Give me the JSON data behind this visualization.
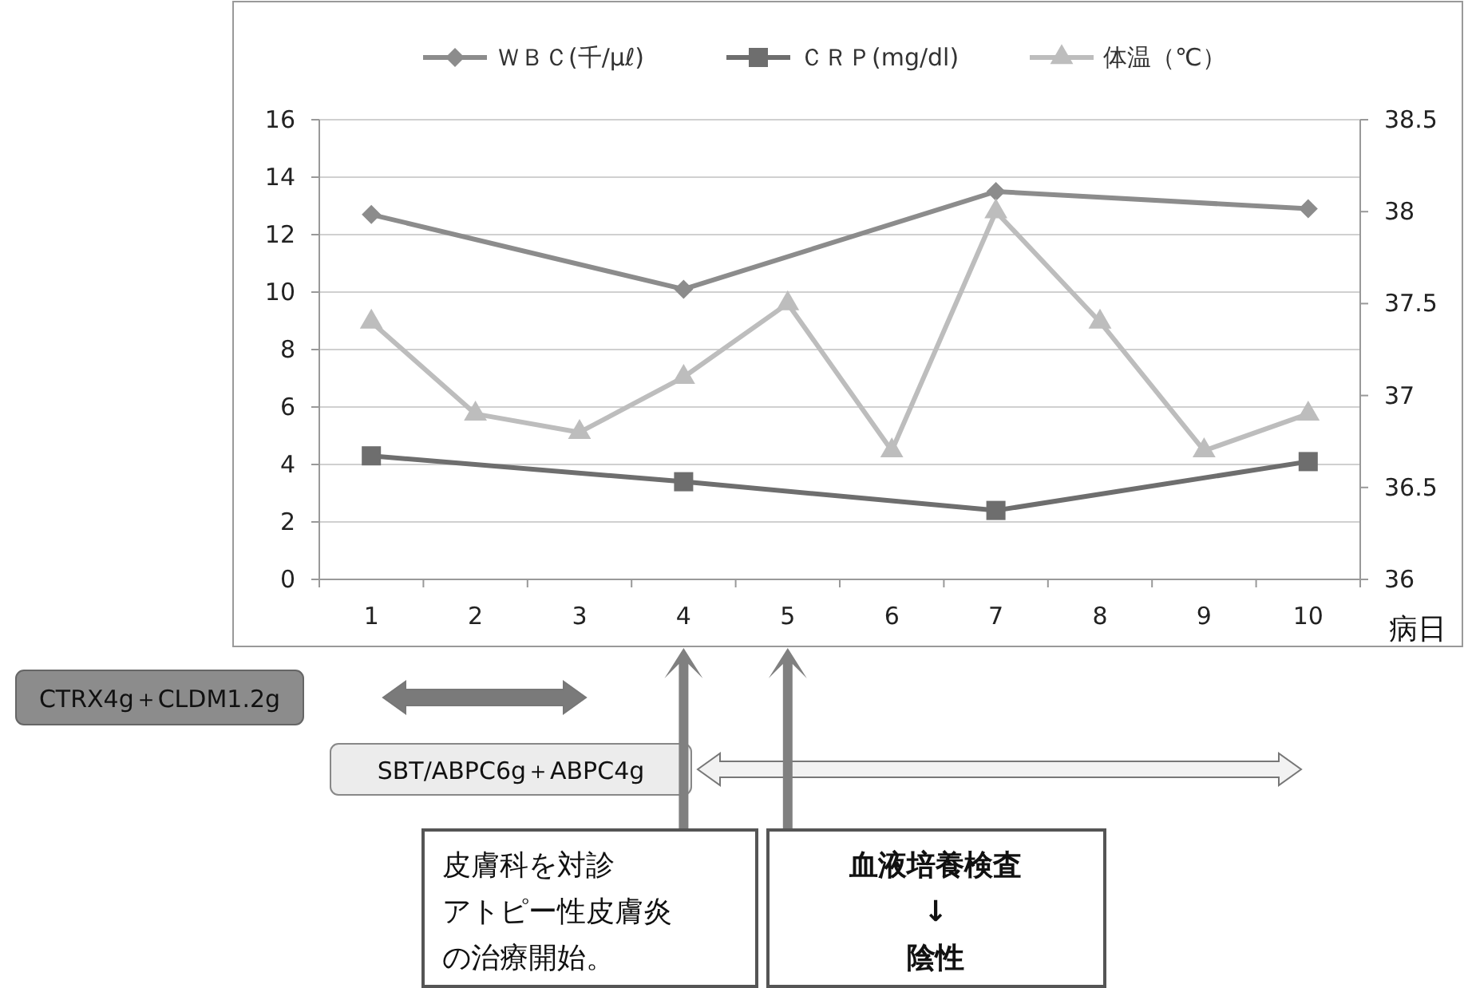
{
  "chart_data": {
    "type": "line",
    "xlabel": "病日",
    "categories": [
      "1",
      "2",
      "3",
      "4",
      "5",
      "6",
      "7",
      "8",
      "9",
      "10"
    ],
    "series": [
      {
        "name": "ＷＢＣ(千/μℓ)",
        "color": "#8c8c8c",
        "marker": "diamond",
        "values": [
          12.7,
          null,
          null,
          10.1,
          null,
          null,
          13.5,
          null,
          null,
          12.9
        ]
      },
      {
        "name": "ＣＲＰ(mg/dl)",
        "color": "#6e6e6e",
        "marker": "square",
        "values": [
          4.3,
          null,
          null,
          3.4,
          null,
          null,
          2.4,
          null,
          null,
          4.1
        ]
      },
      {
        "name": "体温（℃）",
        "color": "#bdbdbd",
        "marker": "triangle",
        "axis": "y2",
        "values": [
          37.4,
          36.9,
          36.8,
          37.1,
          37.5,
          36.7,
          38.0,
          37.4,
          36.7,
          36.9
        ]
      }
    ],
    "ylim": [
      0,
      16
    ],
    "yticks": [
      0,
      2,
      4,
      6,
      8,
      10,
      12,
      14,
      16
    ],
    "y2lim": [
      36,
      38.5
    ],
    "y2ticks": [
      36,
      36.5,
      37,
      37.5,
      38,
      38.5
    ],
    "grid": "y",
    "legend": "top",
    "annotations": [
      "CTRX4g＋CLDM1.2g",
      "SBT/ABPC6g＋ABPC4g",
      "皮膚科を対診",
      "アトピー性皮膚炎の治療開始。",
      "血液培養検査\n↓\n陰性"
    ]
  }
}
